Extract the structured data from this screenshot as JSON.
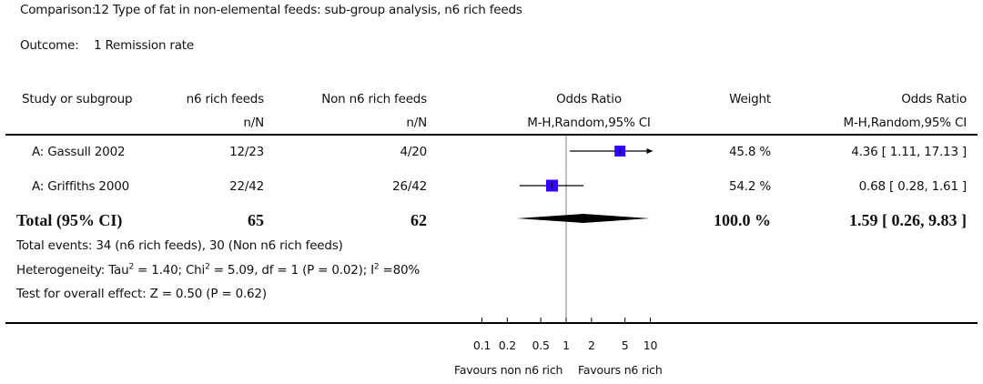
{
  "header": {
    "comparison_label": "Comparison:",
    "comparison_value": "12 Type of fat in non-elemental feeds: sub-group analysis, n6 rich feeds",
    "outcome_label": "Outcome:",
    "outcome_value": "1 Remission rate"
  },
  "columns": {
    "study": "Study or subgroup",
    "group1": "n6 rich feeds",
    "group1_sub": "n/N",
    "group2": "Non n6 rich feeds",
    "group2_sub": "n/N",
    "plot": "Odds Ratio",
    "plot_sub": "M-H,Random,95% CI",
    "weight": "Weight",
    "effect": "Odds Ratio",
    "effect_sub": "M-H,Random,95% CI"
  },
  "summary": {
    "total_events": "Total events: 34 (n6 rich feeds), 30 (Non n6 rich feeds)",
    "heterogeneity_pre": "Heterogeneity: Tau",
    "heterogeneity_tau_sup": "2",
    "heterogeneity_mid1": " = 1.40; Chi",
    "heterogeneity_chi_sup": "2",
    "heterogeneity_mid2": " = 5.09, df = 1 (P = 0.02); I",
    "heterogeneity_i_sup": "2",
    "heterogeneity_end": " =80%",
    "overall_effect": "Test for overall effect: Z = 0.50 (P = 0.62)"
  },
  "axis": {
    "favours_left": "Favours non n6 rich",
    "favours_right": "Favours n6 rich"
  },
  "colors": {
    "study_marker": "#3300ff",
    "diamond": "#000000",
    "null_line": "#808080"
  },
  "chart_data": {
    "type": "forest",
    "scale": "log",
    "xlim": [
      0.1,
      10
    ],
    "ticks": [
      0.1,
      0.2,
      0.5,
      1,
      2,
      5,
      10
    ],
    "tick_labels": [
      "0.1",
      "0.2",
      "0.5",
      "1",
      "2",
      "5",
      "10"
    ],
    "null_value": 1,
    "xlabel_left": "Favours non n6 rich",
    "xlabel_right": "Favours n6 rich",
    "studies": [
      {
        "name": "A: Gassull 2002",
        "group1": "12/23",
        "group2": "4/20",
        "or": 4.36,
        "lower": 1.11,
        "upper": 17.13,
        "weight_pct": 45.8,
        "weight_label": "45.8 %",
        "effect_label": "4.36 [ 1.11, 17.13 ]"
      },
      {
        "name": "A: Griffiths 2000",
        "group1": "22/42",
        "group2": "26/42",
        "or": 0.68,
        "lower": 0.28,
        "upper": 1.61,
        "weight_pct": 54.2,
        "weight_label": "54.2 %",
        "effect_label": "0.68 [ 0.28, 1.61 ]"
      }
    ],
    "total": {
      "name": "Total (95% CI)",
      "group1": "65",
      "group2": "62",
      "or": 1.59,
      "lower": 0.26,
      "upper": 9.83,
      "weight_label": "100.0 %",
      "effect_label": "1.59 [ 0.26, 9.83 ]"
    }
  }
}
